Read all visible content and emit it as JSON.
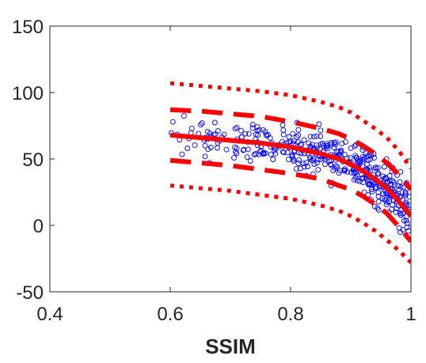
{
  "chart_data": {
    "type": "scatter",
    "title": "",
    "xlabel": "SSIM",
    "ylabel": "",
    "xlim": [
      0.4,
      1.0
    ],
    "ylim": [
      -50,
      150
    ],
    "xticks": [
      0.4,
      0.6,
      0.8,
      1.0
    ],
    "xtick_labels": [
      "0.4",
      "0.6",
      "0.8",
      "1"
    ],
    "yticks": [
      -50,
      0,
      50,
      100,
      150
    ],
    "ytick_labels": [
      "-50",
      "0",
      "50",
      "100",
      "150"
    ],
    "grid": false,
    "colors": {
      "points": "#0000ff",
      "fit": "#ff0000",
      "axes": "#262626"
    },
    "fit_curve": {
      "style": "solid",
      "x": [
        0.6,
        0.65,
        0.7,
        0.75,
        0.8,
        0.85,
        0.88,
        0.9,
        0.92,
        0.94,
        0.96,
        0.98,
        1.0
      ],
      "y": [
        68,
        66,
        64,
        62,
        59,
        54,
        50,
        46,
        41,
        35,
        28,
        18,
        7
      ]
    },
    "inner_bounds": {
      "style": "dashed",
      "upper": {
        "x": [
          0.6,
          0.65,
          0.7,
          0.75,
          0.8,
          0.85,
          0.88,
          0.9,
          0.92,
          0.94,
          0.96,
          0.98,
          1.0
        ],
        "y": [
          87,
          86,
          84,
          82,
          78,
          73,
          69,
          65,
          60,
          54,
          47,
          38,
          27
        ]
      },
      "lower": {
        "x": [
          0.6,
          0.65,
          0.7,
          0.75,
          0.8,
          0.85,
          0.88,
          0.9,
          0.92,
          0.94,
          0.96,
          0.98,
          1.0
        ],
        "y": [
          49,
          47,
          45,
          42,
          39,
          35,
          30,
          27,
          22,
          16,
          9,
          -1,
          -12
        ]
      }
    },
    "outer_bounds": {
      "style": "dotted",
      "upper": {
        "x": [
          0.6,
          0.65,
          0.7,
          0.75,
          0.8,
          0.85,
          0.88,
          0.9,
          0.92,
          0.94,
          0.96,
          0.98,
          1.0
        ],
        "y": [
          107,
          105,
          103,
          101,
          98,
          93,
          89,
          85,
          79,
          73,
          66,
          56,
          43
        ]
      },
      "lower": {
        "x": [
          0.6,
          0.65,
          0.7,
          0.75,
          0.8,
          0.85,
          0.88,
          0.9,
          0.92,
          0.94,
          0.96,
          0.98,
          1.0
        ],
        "y": [
          30,
          28,
          26,
          23,
          20,
          15,
          11,
          7,
          2,
          -4,
          -11,
          -19,
          -28
        ]
      }
    },
    "points": {
      "count": 420,
      "x_range": [
        0.6,
        1.0
      ],
      "trend": "fit_curve",
      "spread": 9
    }
  }
}
